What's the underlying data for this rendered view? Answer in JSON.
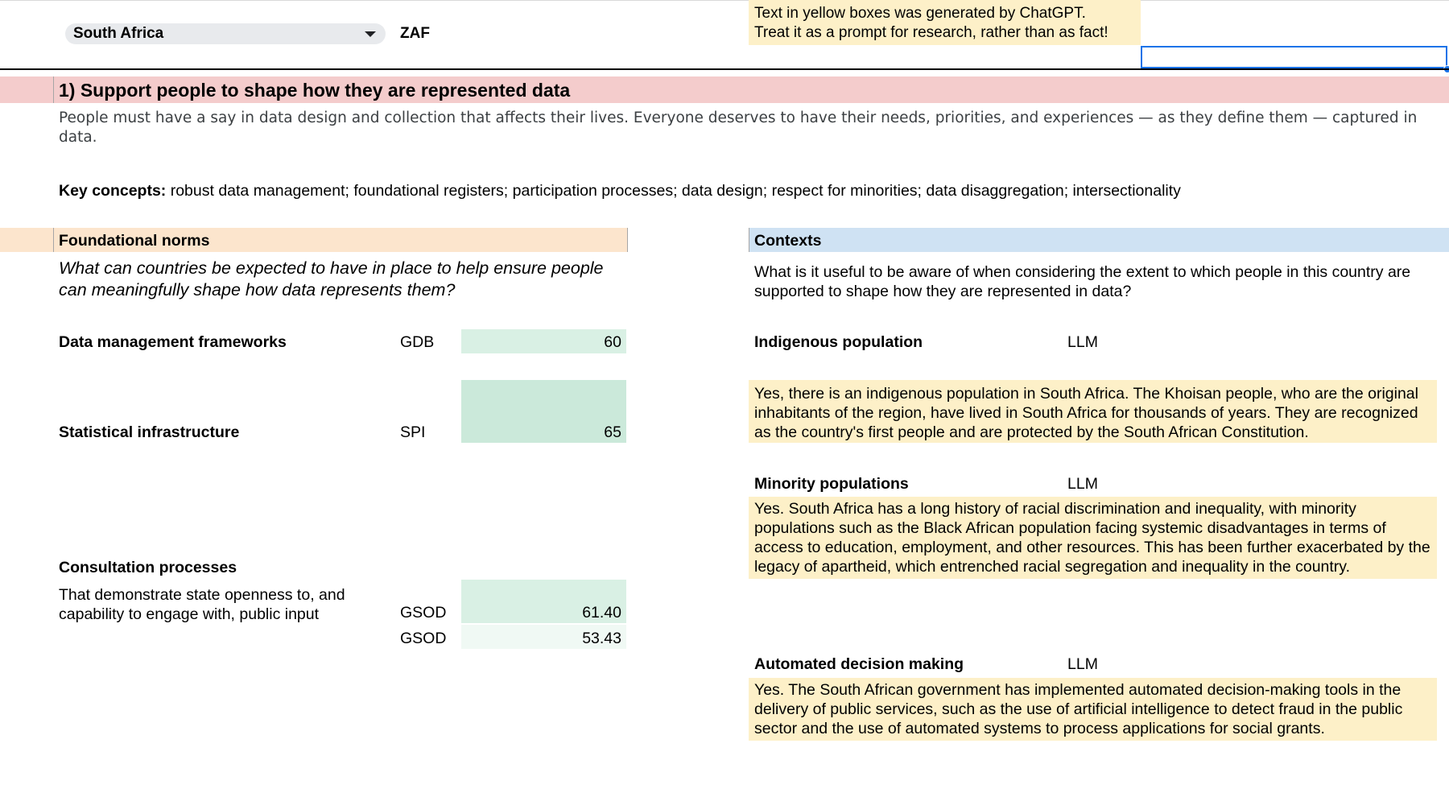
{
  "header": {
    "country": "South Africa",
    "country_code": "ZAF",
    "disclaimer_line1": "Text in yellow boxes was generated by ChatGPT.",
    "disclaimer_line2": "Treat it as a prompt for research, rather than as fact!",
    "selected_cell_value": ""
  },
  "section": {
    "title": "1) Support people to shape how they are represented data",
    "description": "People must have a say in data design and collection that affects their lives. Everyone deserves to have their needs, priorities, and experiences — as they define them — captured in data.",
    "key_concepts_label": "Key concepts:",
    "key_concepts_text": " robust data management; foundational registers; participation processes; data design; respect for minorities; data disaggregation; intersectionality"
  },
  "norms": {
    "title": "Foundational norms",
    "question": "What can countries be expected to have in place to help ensure people can meaningfully shape how data represents them?",
    "metrics": [
      {
        "label": "Data management frameworks",
        "source": "GDB",
        "value": "60"
      },
      {
        "label": "Statistical infrastructure",
        "source": "SPI",
        "value": "65"
      },
      {
        "label": "Consultation processes",
        "description": "That demonstrate state openness to, and capability to engage with, public input",
        "source": "GSOD",
        "value": "61.40",
        "source2": "GSOD",
        "value2": "53.43"
      }
    ]
  },
  "contexts": {
    "title": "Contexts",
    "question": "What is it useful to be aware of when considering the extent to which people in this country are supported to shape how they are represented in data?",
    "items": [
      {
        "label": "Indigenous population",
        "source": "LLM",
        "text": "Yes, there is an indigenous population in South Africa. The Khoisan people, who are the original inhabitants of the region, have lived in South Africa for thousands of years. They are recognized as the country's first people and are protected by the South African Constitution."
      },
      {
        "label": "Minority populations",
        "source": "LLM",
        "text": "Yes. South Africa has a long history of racial discrimination and inequality, with minority populations such as the Black African population facing systemic disadvantages in terms of access to education, employment, and other resources. This has been further exacerbated by the legacy of apartheid, which entrenched racial segregation and inequality in the country."
      },
      {
        "label": "Automated decision making",
        "source": "LLM",
        "text": "Yes. The South African government has implemented automated decision-making tools in the delivery of public services, such as the use of artificial intelligence to detect fraud in the public sector and the use of automated systems to process applications for social grants."
      }
    ]
  },
  "colors": {
    "section_band": "#f4cccc",
    "norms_band": "#fce5cd",
    "contexts_band": "#cfe2f3",
    "llm_box": "#fdf0c8",
    "score_green": "#cbe9da",
    "selection_blue": "#1a73e8"
  },
  "icons": {
    "dropdown": "triangle-down-icon"
  }
}
